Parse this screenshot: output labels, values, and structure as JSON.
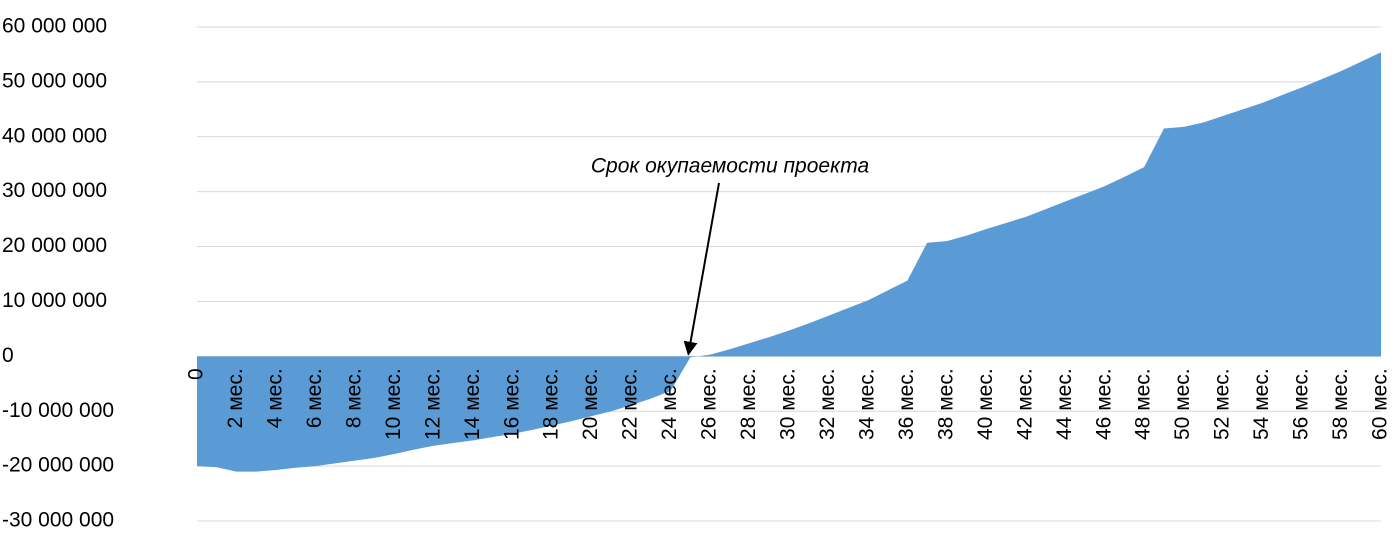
{
  "chart_data": {
    "type": "area",
    "annotation": "Срок окупаемости проекта",
    "categories": [
      "0",
      null,
      "2 мес.",
      null,
      "4 мес.",
      null,
      "6 мес.",
      null,
      "8 мес.",
      null,
      "10 мес.",
      null,
      "12 мес.",
      null,
      "14 мес.",
      null,
      "16 мес.",
      null,
      "18 мес.",
      null,
      "20 мес.",
      null,
      "22 мес.",
      null,
      "24 мес.",
      null,
      "26 мес.",
      null,
      "28 мес.",
      null,
      "30 мес.",
      null,
      "32 мес.",
      null,
      "34 мес.",
      null,
      "36 мес.",
      null,
      "38 мес.",
      null,
      "40 мес.",
      null,
      "42 мес.",
      null,
      "44 мес.",
      null,
      "46 мес.",
      null,
      "48 мес.",
      null,
      "50 мес.",
      null,
      "52 мес.",
      null,
      "54 мес.",
      null,
      "56 мес.",
      null,
      "58 мес.",
      null,
      "60 мес."
    ],
    "series": [
      {
        "name": "",
        "color": "#5b9bd5",
        "values": [
          -20000000,
          -20200000,
          -21000000,
          -21000000,
          -20700000,
          -20300000,
          -20000000,
          -19500000,
          -19000000,
          -18500000,
          -17800000,
          -17000000,
          -16300000,
          -15800000,
          -15300000,
          -14700000,
          -14100000,
          -13400000,
          -12600000,
          -11800000,
          -10900000,
          -10000000,
          -8900000,
          -7700000,
          -6300000,
          -200000,
          300000,
          1300000,
          2400000,
          3500000,
          4700000,
          6000000,
          7400000,
          8800000,
          10200000,
          12000000,
          13800000,
          20700000,
          21000000,
          22000000,
          23200000,
          24300000,
          25400000,
          26800000,
          28200000,
          29600000,
          31000000,
          32700000,
          34500000,
          41500000,
          41800000,
          42600000,
          43800000,
          45000000,
          46200000,
          47600000,
          49000000,
          50500000,
          52000000,
          53700000,
          55400000
        ]
      }
    ],
    "ylim": [
      -30000000,
      60000000
    ],
    "yticks": [
      {
        "value": -30000000,
        "label": "-30 000 000"
      },
      {
        "value": -20000000,
        "label": "-20 000 000"
      },
      {
        "value": -10000000,
        "label": "-10 000 000"
      },
      0,
      {
        "value": 10000000,
        "label": "10 000 000"
      },
      {
        "value": 20000000,
        "label": "20 000 000"
      },
      {
        "value": 30000000,
        "label": "30 000 000"
      },
      {
        "value": 40000000,
        "label": "40 000 000"
      },
      {
        "value": 50000000,
        "label": "50 000 000"
      },
      {
        "value": 60000000,
        "label": "60 000 000"
      }
    ],
    "grid": true
  }
}
